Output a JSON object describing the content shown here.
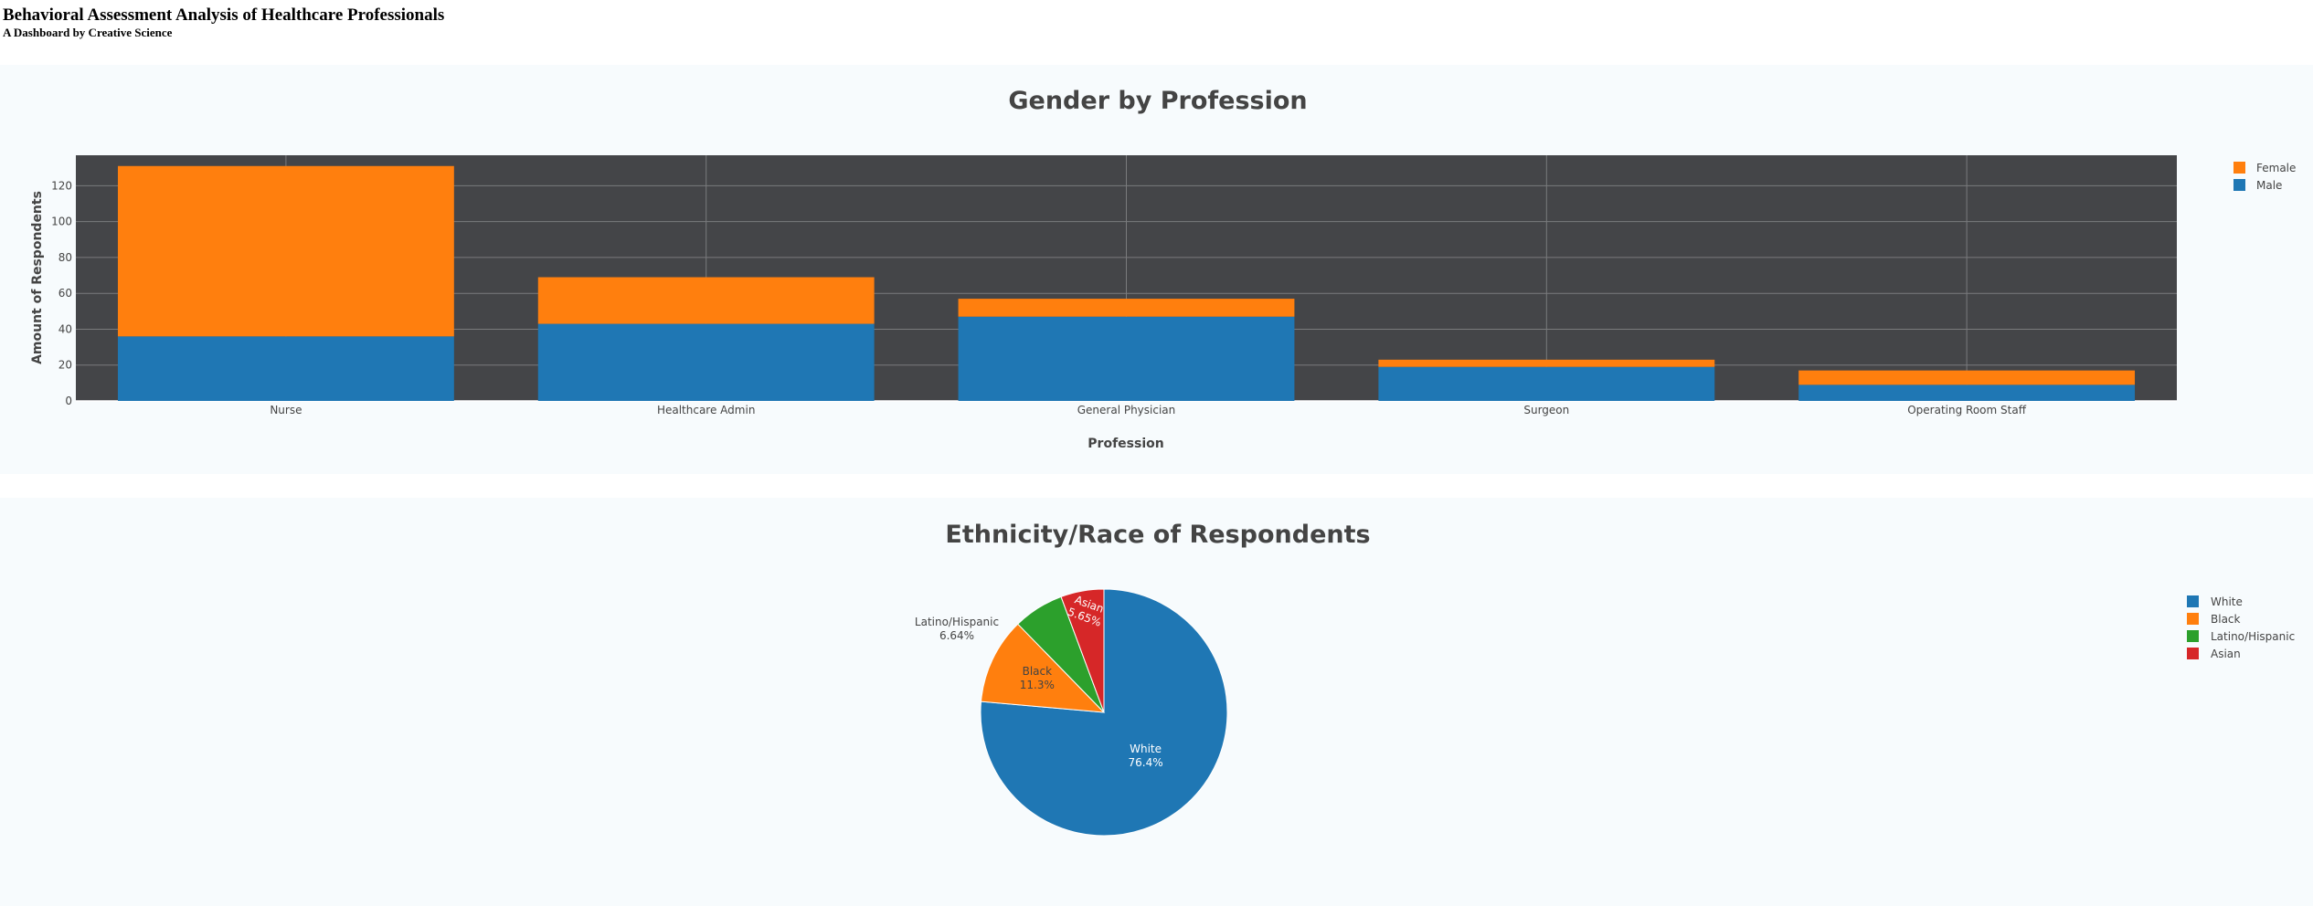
{
  "header": {
    "title": "Behavioral Assessment Analysis of Healthcare Professionals",
    "subtitle": "A Dashboard by Creative Science"
  },
  "chart_data": [
    {
      "type": "bar",
      "stacked": true,
      "title": "Gender by Profession",
      "xlabel": "Profession",
      "ylabel": "Amount of Respondents",
      "categories": [
        "Nurse",
        "Healthcare Admin",
        "General Physician",
        "Surgeon",
        "Operating Room Staff"
      ],
      "series": [
        {
          "name": "Male",
          "color": "#1f77b4",
          "values": [
            36,
            43,
            47,
            19,
            9
          ]
        },
        {
          "name": "Female",
          "color": "#ff7f0e",
          "values": [
            95,
            26,
            10,
            4,
            8
          ]
        }
      ],
      "ylim": [
        0,
        137
      ],
      "yticks": [
        0,
        20,
        40,
        60,
        80,
        100,
        120
      ],
      "grid": true,
      "legend": [
        "Female",
        "Male"
      ],
      "legend_position": "top-right"
    },
    {
      "type": "pie",
      "title": "Ethnicity/Race of Respondents",
      "slices": [
        {
          "label": "White",
          "percent": "76.4%",
          "value": 76.4,
          "color": "#1f77b4"
        },
        {
          "label": "Black",
          "percent": "11.3%",
          "value": 11.3,
          "color": "#ff7f0e"
        },
        {
          "label": "Latino/Hispanic",
          "percent": "6.64%",
          "value": 6.64,
          "color": "#2ca02c"
        },
        {
          "label": "Asian",
          "percent": "5.65%",
          "value": 5.65,
          "color": "#d62728"
        }
      ],
      "legend_position": "top-right"
    }
  ]
}
